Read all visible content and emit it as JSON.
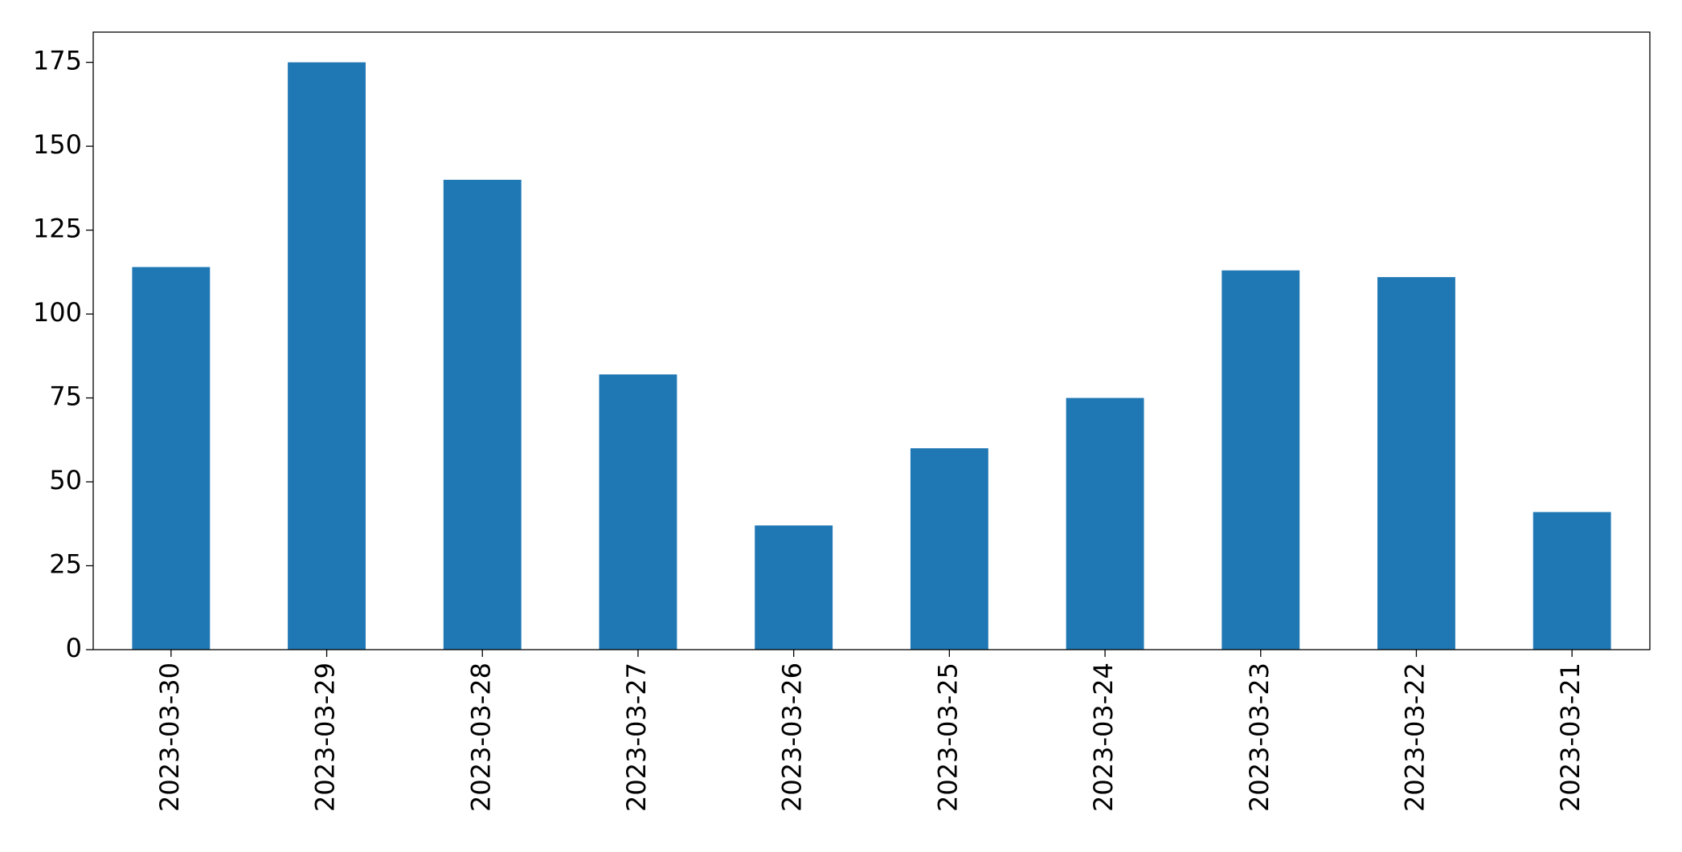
{
  "chart_data": {
    "type": "bar",
    "categories": [
      "2023-03-30",
      "2023-03-29",
      "2023-03-28",
      "2023-03-27",
      "2023-03-26",
      "2023-03-25",
      "2023-03-24",
      "2023-03-23",
      "2023-03-22",
      "2023-03-21"
    ],
    "values": [
      114,
      175,
      140,
      82,
      37,
      60,
      75,
      113,
      111,
      41
    ],
    "color": "#1f77b4",
    "ylim": [
      0,
      184
    ],
    "yticks": [
      0,
      25,
      50,
      75,
      100,
      125,
      150,
      175
    ],
    "grid": false
  }
}
